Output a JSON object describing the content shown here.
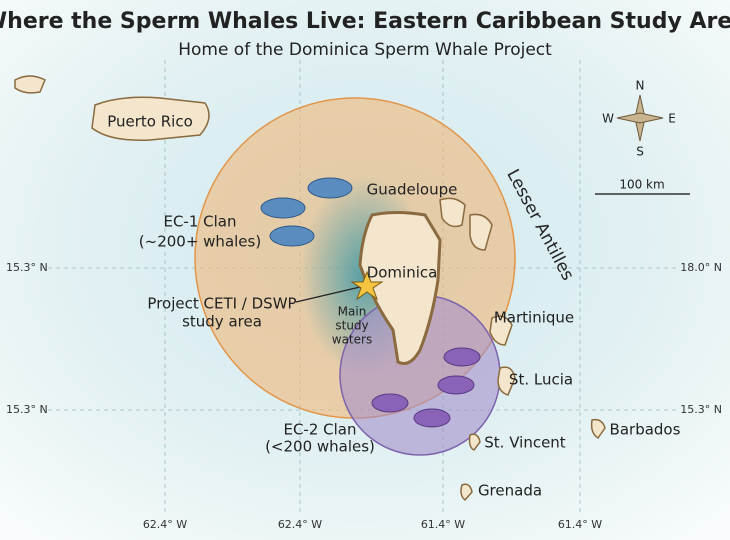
{
  "header": {
    "title": "Where the Sperm Whales Live: Eastern Caribbean Study Area",
    "subtitle": "Home of the Dominica Sperm Whale Project"
  },
  "places": [
    "Puerto Rico",
    "Guadeloupe",
    "Dominica",
    "Martinique",
    "St. Lucia",
    "St. Vincent",
    "Barbados",
    "Grenada"
  ],
  "region_label": "Lesser Antilles",
  "compass": {
    "n": "N",
    "e": "E",
    "s": "S",
    "w": "W"
  },
  "scale_bar": "100 km",
  "clans": [
    {
      "name": "EC-1 Clan",
      "size": "(~200+ whales)"
    },
    {
      "name": "EC-2 Clan",
      "size": "(<200 whales)"
    }
  ],
  "study_area": {
    "label": [
      "Project CETI / DSWP",
      "study area"
    ],
    "waters": [
      "Main",
      "study",
      "waters"
    ]
  },
  "latitude_labels": {
    "left": [
      "15.3° N",
      "15.3° N"
    ],
    "right": [
      "18.0° N",
      "15.3° N"
    ]
  },
  "longitude_labels": [
    "62.4° W",
    "62.4° W",
    "61.4° W",
    "61.4° W"
  ]
}
